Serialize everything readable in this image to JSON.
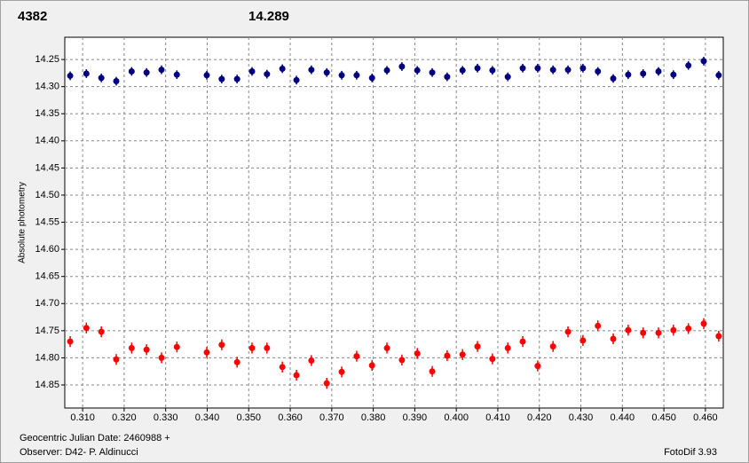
{
  "chart_data": {
    "type": "scatter",
    "ylabel": "Absolute photometry",
    "footer_left": [
      "Geocentric Julian Date: 2460988 +",
      "Observer: D42- P. Aldinucci"
    ],
    "footer_right": "FotoDif 3.93",
    "x": [
      0.307,
      0.3109,
      0.3145,
      0.3181,
      0.3218,
      0.3254,
      0.329,
      0.3327,
      0.3399,
      0.3435,
      0.3472,
      0.3508,
      0.3544,
      0.3581,
      0.3615,
      0.3651,
      0.3688,
      0.3724,
      0.376,
      0.3797,
      0.3833,
      0.3869,
      0.3906,
      0.3942,
      0.3978,
      0.4015,
      0.4051,
      0.4087,
      0.4124,
      0.416,
      0.4196,
      0.4233,
      0.4269,
      0.4305,
      0.4341,
      0.4378,
      0.4414,
      0.445,
      0.4487,
      0.4523,
      0.4559,
      0.4596,
      0.4632
    ],
    "series": [
      {
        "name": "4382",
        "color": "#ff0000",
        "error": 0.01,
        "values": [
          14.77,
          14.745,
          14.752,
          14.803,
          14.782,
          14.785,
          14.8,
          14.78,
          14.79,
          14.776,
          14.808,
          14.782,
          14.782,
          14.817,
          14.832,
          14.805,
          14.847,
          14.826,
          14.797,
          14.814,
          14.782,
          14.804,
          14.792,
          14.825,
          14.796,
          14.794,
          14.779,
          14.802,
          14.782,
          14.77,
          14.815,
          14.779,
          14.752,
          14.768,
          14.741,
          14.765,
          14.749,
          14.754,
          14.754,
          14.749,
          14.746,
          14.737,
          14.76
        ]
      },
      {
        "name": "14.289",
        "color": "#000080",
        "error": 0.008,
        "values": [
          14.28,
          14.276,
          14.284,
          14.29,
          14.272,
          14.274,
          14.269,
          14.278,
          14.279,
          14.286,
          14.286,
          14.272,
          14.277,
          14.267,
          14.288,
          14.269,
          14.274,
          14.279,
          14.279,
          14.284,
          14.27,
          14.263,
          14.27,
          14.274,
          14.282,
          14.27,
          14.266,
          14.27,
          14.282,
          14.266,
          14.266,
          14.269,
          14.269,
          14.266,
          14.272,
          14.285,
          14.278,
          14.276,
          14.272,
          14.278,
          14.261,
          14.253,
          14.279
        ]
      }
    ],
    "xlim": [
      0.3057,
      0.4643
    ],
    "ylim": [
      14.209,
      14.8925
    ],
    "y_inverted": true,
    "grid": true,
    "xticks": [
      {
        "value": 0.31,
        "label": "0.310"
      },
      {
        "value": 0.32,
        "label": "0.320"
      },
      {
        "value": 0.33,
        "label": "0.330"
      },
      {
        "value": 0.34,
        "label": "0.340"
      },
      {
        "value": 0.35,
        "label": "0.350"
      },
      {
        "value": 0.36,
        "label": "0.360"
      },
      {
        "value": 0.37,
        "label": "0.370"
      },
      {
        "value": 0.38,
        "label": "0.380"
      },
      {
        "value": 0.39,
        "label": "0.390"
      },
      {
        "value": 0.4,
        "label": "0.400"
      },
      {
        "value": 0.41,
        "label": "0.410"
      },
      {
        "value": 0.42,
        "label": "0.420"
      },
      {
        "value": 0.43,
        "label": "0.430"
      },
      {
        "value": 0.44,
        "label": "0.440"
      },
      {
        "value": 0.45,
        "label": "0.450"
      },
      {
        "value": 0.46,
        "label": "0.460"
      }
    ],
    "yticks": [
      14.25,
      {
        "value": 14.3,
        "label": "14.30"
      },
      14.35,
      {
        "value": 14.4,
        "label": "14.40"
      },
      14.45,
      {
        "value": 14.5,
        "label": "14.50"
      },
      14.55,
      {
        "value": 14.6,
        "label": "14.60"
      },
      14.65,
      {
        "value": 14.7,
        "label": "14.70"
      },
      14.75,
      {
        "value": 14.8,
        "label": "14.80"
      },
      14.85
    ]
  }
}
